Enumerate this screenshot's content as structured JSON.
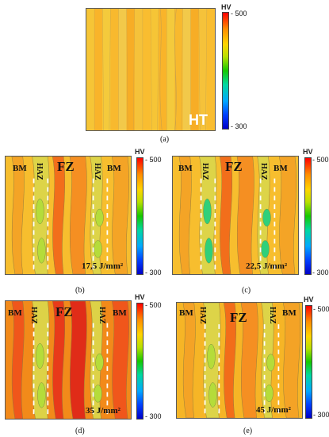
{
  "colorbar": {
    "title": "HV",
    "max_label": "- 500",
    "min_label": "- 300",
    "range": [
      300,
      500
    ]
  },
  "panels": [
    {
      "caption": "(a)",
      "name": "panel-a",
      "label_main": "HT",
      "energy": "",
      "zones": {
        "bm": "",
        "haz": "",
        "fz": ""
      },
      "style": "ht",
      "level": 0.6
    },
    {
      "caption": "(b)",
      "name": "panel-b",
      "label_main": "",
      "energy": "17,5 J/mm²",
      "zones": {
        "bm": "BM",
        "haz": "HAZ",
        "fz": "FZ"
      },
      "style": "b",
      "level": 0.55
    },
    {
      "caption": "(c)",
      "name": "panel-c",
      "label_main": "",
      "energy": "22,5 J/mm²",
      "zones": {
        "bm": "BM",
        "haz": "HAZ",
        "fz": "FZ"
      },
      "style": "c",
      "level": 0.62
    },
    {
      "caption": "(d)",
      "name": "panel-d",
      "label_main": "",
      "energy": "35 J/mm²",
      "zones": {
        "bm": "BM",
        "haz": "HAZ",
        "fz": "FZ"
      },
      "style": "d",
      "level": 0.85
    },
    {
      "caption": "(e)",
      "name": "panel-e",
      "label_main": "",
      "energy": "45 J/mm²",
      "zones": {
        "bm": "BM",
        "haz": "HAZ",
        "fz": "FZ"
      },
      "style": "e",
      "level": 0.7
    }
  ],
  "chart_data": {
    "type": "heatmap",
    "title": "",
    "colorbar_label": "HV",
    "colorbar_range": [
      300,
      500
    ],
    "panels": [
      {
        "id": "(a)",
        "condition": "HT",
        "typical_hv": [
          440,
          460
        ]
      },
      {
        "id": "(b)",
        "condition": "17,5 J/mm²",
        "zones": [
          "BM",
          "HAZ",
          "FZ",
          "HAZ",
          "BM"
        ],
        "typical_hv": [
          400,
          460
        ]
      },
      {
        "id": "(c)",
        "condition": "22,5 J/mm²",
        "zones": [
          "BM",
          "HAZ",
          "FZ",
          "HAZ",
          "BM"
        ],
        "typical_hv": [
          390,
          470
        ]
      },
      {
        "id": "(d)",
        "condition": "35 J/mm²",
        "zones": [
          "BM",
          "HAZ",
          "FZ",
          "HAZ",
          "BM"
        ],
        "typical_hv": [
          420,
          500
        ]
      },
      {
        "id": "(e)",
        "condition": "45 J/mm²",
        "zones": [
          "BM",
          "HAZ",
          "FZ",
          "HAZ",
          "BM"
        ],
        "typical_hv": [
          420,
          480
        ]
      }
    ]
  }
}
